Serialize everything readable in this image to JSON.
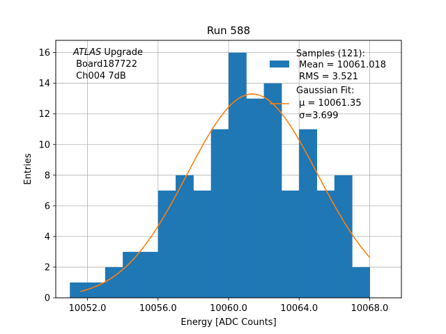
{
  "chart_data": {
    "type": "bar",
    "title": "Run 588",
    "xlabel": "Energy [ADC Counts]",
    "ylabel": "Entries",
    "xlim": [
      10050.2,
      10069.8
    ],
    "ylim": [
      0,
      16.8
    ],
    "grid": true,
    "x_ticks": [
      10052,
      10056,
      10060,
      10064,
      10068
    ],
    "x_tick_labels": [
      "10052.0",
      "10056.0",
      "10060.0",
      "10064.0",
      "10068.0"
    ],
    "y_ticks": [
      0,
      2,
      4,
      6,
      8,
      10,
      12,
      14,
      16
    ],
    "y_tick_labels": [
      "0",
      "2",
      "4",
      "6",
      "8",
      "10",
      "12",
      "14",
      "16"
    ],
    "bin_edges": [
      10051,
      10052,
      10053,
      10054,
      10055,
      10056,
      10057,
      10058,
      10059,
      10060,
      10061,
      10062,
      10063,
      10064,
      10065,
      10066,
      10067,
      10068
    ],
    "counts": [
      1,
      1,
      2,
      3,
      3,
      7,
      8,
      7,
      11,
      16,
      13,
      14,
      7,
      11,
      7,
      8,
      2
    ],
    "histogram_color": "#1f77b4",
    "fit": {
      "type": "gaussian",
      "mu": 10061.35,
      "sigma": 3.699,
      "amplitude": 13.3,
      "x_range": [
        10051.6,
        10068.0
      ],
      "color": "#ff7f0e"
    },
    "legend_position": "top-right",
    "legend": {
      "samples_lines": [
        "Samples (121):",
        " Mean = 10061.018",
        " RMS = 3.521"
      ],
      "fit_lines": [
        "Gaussian Fit:",
        " μ = 10061.35",
        " σ=3.699"
      ]
    },
    "annotation": {
      "atlas": "ATLAS",
      "upgrade": " Upgrade",
      "board": " Board187722",
      "channel": " Ch004 7dB"
    }
  }
}
